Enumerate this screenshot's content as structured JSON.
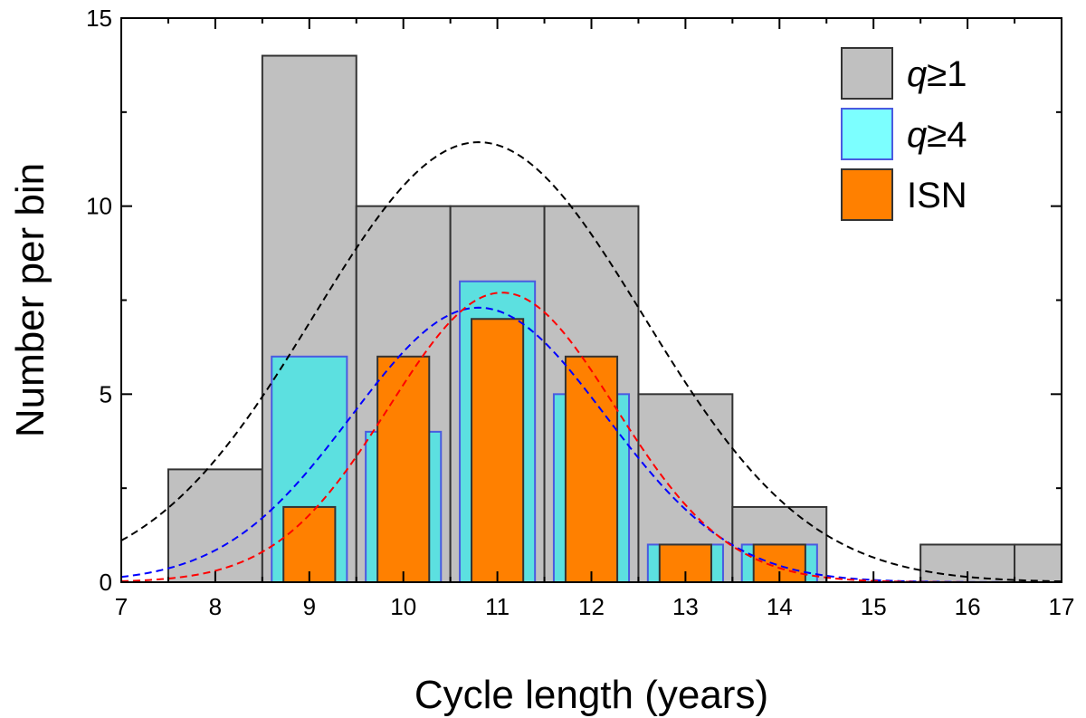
{
  "chart_data": {
    "type": "bar",
    "title": "",
    "xlabel": "Cycle length (years)",
    "ylabel": "Number per bin",
    "xlim": [
      7,
      17
    ],
    "ylim": [
      0,
      15
    ],
    "x_ticks": [
      7,
      8,
      9,
      10,
      11,
      12,
      13,
      14,
      15,
      16,
      17
    ],
    "x_tick_labels": [
      "7",
      "8",
      "9",
      "10",
      "11",
      "12",
      "13",
      "14",
      "15",
      "16",
      "17"
    ],
    "y_ticks": [
      0,
      5,
      10,
      15
    ],
    "y_tick_labels": [
      "0",
      "5",
      "10",
      "15"
    ],
    "legend_position": "top-right",
    "series": [
      {
        "name": "q≥1",
        "legend_italic": "q",
        "legend_rest": "≥1",
        "color": "#c0c0c0",
        "edge": "#333333",
        "bin_width": 1.0,
        "bins": [
          {
            "x": 8,
            "value": 3
          },
          {
            "x": 9,
            "value": 14
          },
          {
            "x": 10,
            "value": 10
          },
          {
            "x": 11,
            "value": 10
          },
          {
            "x": 12,
            "value": 10
          },
          {
            "x": 13,
            "value": 5
          },
          {
            "x": 14,
            "value": 2
          },
          {
            "x": 15,
            "value": 0
          },
          {
            "x": 16,
            "value": 1
          },
          {
            "x": 17,
            "value": 1
          }
        ]
      },
      {
        "name": "q≥4",
        "legend_italic": "q",
        "legend_rest": "≥4",
        "color": "#5ce0e0",
        "legend_color": "#7cffff",
        "edge": "#4a5ae0",
        "bin_width": 0.8,
        "bins": [
          {
            "x": 9,
            "value": 6
          },
          {
            "x": 10,
            "value": 4
          },
          {
            "x": 11,
            "value": 8
          },
          {
            "x": 12,
            "value": 5
          },
          {
            "x": 13,
            "value": 1
          },
          {
            "x": 14,
            "value": 1
          }
        ]
      },
      {
        "name": "ISN",
        "legend_italic": "",
        "legend_rest": "ISN",
        "color": "#ff8000",
        "edge": "#333333",
        "bin_width": 0.55,
        "bins": [
          {
            "x": 9,
            "value": 2
          },
          {
            "x": 10,
            "value": 6
          },
          {
            "x": 11,
            "value": 7
          },
          {
            "x": 12,
            "value": 6
          },
          {
            "x": 13,
            "value": 1
          },
          {
            "x": 14,
            "value": 1
          }
        ]
      }
    ],
    "fits": [
      {
        "name": "q≥1 gaussian fit",
        "color": "#000000",
        "mean": 10.8,
        "sigma": 1.75,
        "peak": 11.7
      },
      {
        "name": "q≥4 gaussian fit",
        "color": "#0000ff",
        "mean": 10.8,
        "sigma": 1.35,
        "peak": 7.3
      },
      {
        "name": "ISN gaussian fit",
        "color": "#ff0000",
        "mean": 11.05,
        "sigma": 1.2,
        "peak": 7.7
      }
    ]
  }
}
